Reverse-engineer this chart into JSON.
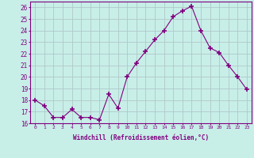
{
  "x": [
    0,
    1,
    2,
    3,
    4,
    5,
    6,
    7,
    8,
    9,
    10,
    11,
    12,
    13,
    14,
    15,
    16,
    17,
    18,
    19,
    20,
    21,
    22,
    23
  ],
  "y": [
    18.0,
    17.5,
    16.5,
    16.5,
    17.2,
    16.5,
    16.5,
    16.3,
    18.5,
    17.3,
    20.0,
    21.2,
    22.2,
    23.2,
    24.0,
    25.2,
    25.7,
    26.1,
    24.0,
    22.5,
    22.1,
    21.0,
    20.0,
    18.9
  ],
  "line_color": "#800080",
  "marker": "+",
  "marker_size": 4,
  "bg_color": "#c8eee8",
  "grid_color": "#b0c8c8",
  "xlabel": "Windchill (Refroidissement éolien,°C)",
  "tick_color": "#800080",
  "ylim": [
    16,
    26.5
  ],
  "xlim": [
    -0.5,
    23.5
  ],
  "yticks": [
    16,
    17,
    18,
    19,
    20,
    21,
    22,
    23,
    24,
    25,
    26
  ],
  "xticks": [
    0,
    1,
    2,
    3,
    4,
    5,
    6,
    7,
    8,
    9,
    10,
    11,
    12,
    13,
    14,
    15,
    16,
    17,
    18,
    19,
    20,
    21,
    22,
    23
  ]
}
